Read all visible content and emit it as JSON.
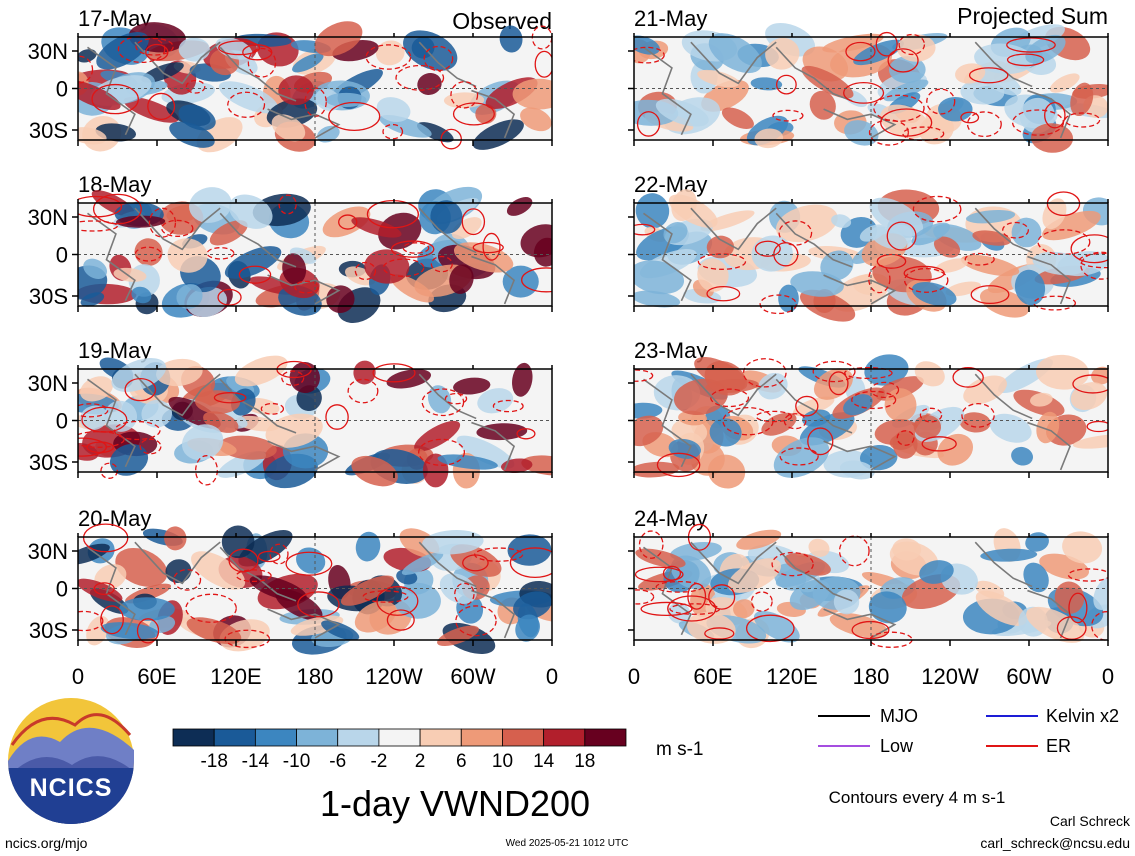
{
  "column_headers": {
    "observed": "Observed",
    "projected": "Projected Sum"
  },
  "panels_left": [
    {
      "date": "17-May"
    },
    {
      "date": "18-May"
    },
    {
      "date": "19-May"
    },
    {
      "date": "20-May"
    }
  ],
  "panels_right": [
    {
      "date": "21-May"
    },
    {
      "date": "22-May"
    },
    {
      "date": "23-May"
    },
    {
      "date": "24-May"
    }
  ],
  "lat_ticks": [
    "30N",
    "0",
    "30S"
  ],
  "lon_ticks": [
    "0",
    "60E",
    "120E",
    "180",
    "120W",
    "60W",
    "0"
  ],
  "colorbar": {
    "labels": [
      "-18",
      "-14",
      "-10",
      "-6",
      "-2",
      "2",
      "6",
      "10",
      "14",
      "18"
    ],
    "colors": [
      "#0d2d55",
      "#1a5a98",
      "#3c86c0",
      "#7db3d8",
      "#b9d6ea",
      "#f4f4f4",
      "#f8cdb4",
      "#ee9a78",
      "#d6604e",
      "#b21f2c",
      "#67001f"
    ],
    "unit": "m s-1"
  },
  "title": "1-day VWND200",
  "legend": {
    "items": [
      {
        "label": "MJO",
        "color": "#000000"
      },
      {
        "label": "Kelvin x2",
        "color": "#1d1dd6"
      },
      {
        "label": "Low",
        "color": "#a54de0"
      },
      {
        "label": "ER",
        "color": "#e01515"
      }
    ],
    "contour_note": "Contours every 4 m s-1"
  },
  "logo_text": "NCICS",
  "footer": {
    "left": "ncics.org/mjo",
    "timestamp": "Wed 2025-05-21 1012 UTC",
    "author": "Carl Schreck",
    "email": "carl_schreck@ncsu.edu"
  }
}
